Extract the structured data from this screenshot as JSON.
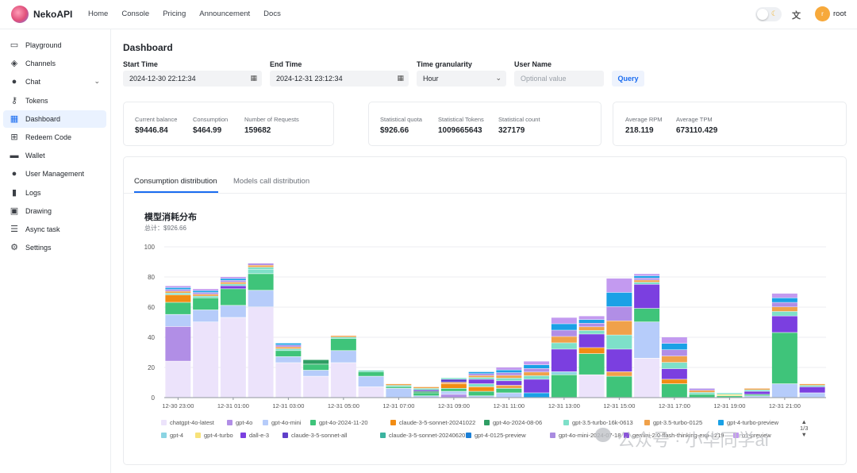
{
  "app": {
    "name": "NekoAPI",
    "user": "root",
    "avatar_initial": "r"
  },
  "nav": [
    "Home",
    "Console",
    "Pricing",
    "Announcement",
    "Docs"
  ],
  "sidebar": [
    {
      "label": "Playground",
      "icon": "chat-bubble-icon",
      "glyph": "▭"
    },
    {
      "label": "Channels",
      "icon": "layers-icon",
      "glyph": "◈"
    },
    {
      "label": "Chat",
      "icon": "message-icon",
      "glyph": "●",
      "expandable": true
    },
    {
      "label": "Tokens",
      "icon": "key-icon",
      "glyph": "⚷"
    },
    {
      "label": "Dashboard",
      "icon": "dashboard-icon",
      "glyph": "▦",
      "active": true
    },
    {
      "label": "Redeem Code",
      "icon": "gift-icon",
      "glyph": "⊞"
    },
    {
      "label": "Wallet",
      "icon": "wallet-icon",
      "glyph": "▬"
    },
    {
      "label": "User Management",
      "icon": "user-icon",
      "glyph": "●"
    },
    {
      "label": "Logs",
      "icon": "bar-chart-icon",
      "glyph": "▮"
    },
    {
      "label": "Drawing",
      "icon": "image-icon",
      "glyph": "▣"
    },
    {
      "label": "Async task",
      "icon": "task-list-icon",
      "glyph": "☰"
    },
    {
      "label": "Settings",
      "icon": "gear-icon",
      "glyph": "⚙"
    }
  ],
  "dashboard": {
    "title": "Dashboard",
    "filters": {
      "start_label": "Start Time",
      "start_value": "2024-12-30 22:12:34",
      "end_label": "End Time",
      "end_value": "2024-12-31 23:12:34",
      "granularity_label": "Time granularity",
      "granularity_value": "Hour",
      "user_label": "User Name",
      "user_placeholder": "Optional value",
      "query_label": "Query"
    },
    "cards": [
      [
        {
          "label": "Current balance",
          "value": "$9446.84"
        },
        {
          "label": "Consumption",
          "value": "$464.99"
        },
        {
          "label": "Number of Requests",
          "value": "159682"
        }
      ],
      [
        {
          "label": "Statistical quota",
          "value": "$926.66"
        },
        {
          "label": "Statistical Tokens",
          "value": "1009665643"
        },
        {
          "label": "Statistical count",
          "value": "327179"
        }
      ],
      [
        {
          "label": "Average RPM",
          "value": "218.119"
        },
        {
          "label": "Average TPM",
          "value": "673110.429"
        }
      ]
    ],
    "tabs": [
      "Consumption distribution",
      "Models call distribution"
    ]
  },
  "legend_pager": "1/3",
  "watermark": "公众号 · 小华同学ai",
  "chart_data": {
    "type": "bar",
    "stacked": true,
    "title": "模型消耗分布",
    "subtitle": "总计：$926.66",
    "ylim": [
      0,
      100
    ],
    "yticks": [
      0,
      20,
      40,
      60,
      80,
      100
    ],
    "grid": true,
    "categories": [
      "12-30 23:00",
      "12-31 00:00",
      "12-31 01:00",
      "12-31 02:00",
      "12-31 03:00",
      "12-31 04:00",
      "12-31 05:00",
      "12-31 06:00",
      "12-31 07:00",
      "12-31 08:00",
      "12-31 09:00",
      "12-31 10:00",
      "12-31 11:00",
      "12-31 12:00",
      "12-31 13:00",
      "12-31 14:00",
      "12-31 15:00",
      "12-31 16:00",
      "12-31 17:00",
      "12-31 18:00",
      "12-31 19:00",
      "12-31 20:00",
      "12-31 21:00",
      "12-31 22:00"
    ],
    "tick_labels_shown": [
      "12-30 23:00",
      "12-31 01:00",
      "12-31 03:00",
      "12-31 05:00",
      "12-31 07:00",
      "12-31 09:00",
      "12-31 11:00",
      "12-31 13:00",
      "12-31 15:00",
      "12-31 17:00",
      "12-31 19:00",
      "12-31 21:00"
    ],
    "series": [
      {
        "name": "chatgpt-4o-latest",
        "color": "#ece3fb",
        "values": [
          24,
          50,
          53,
          60,
          23,
          14,
          23,
          7,
          0,
          0,
          0,
          0,
          0,
          0,
          0,
          15,
          0,
          26,
          0,
          0,
          0,
          0,
          0,
          0
        ]
      },
      {
        "name": "gpt-4o",
        "color": "#b18ee6",
        "values": [
          23,
          0,
          0,
          0,
          0,
          0,
          0,
          0,
          0,
          0,
          2,
          0,
          0,
          0,
          0,
          0,
          0,
          0,
          0,
          0,
          0,
          0,
          0,
          0
        ]
      },
      {
        "name": "gpt-4o-mini",
        "color": "#b6ccfa",
        "values": [
          8,
          8,
          8,
          11,
          4,
          4,
          8,
          7,
          6,
          1,
          2,
          1,
          3,
          0,
          0,
          0,
          0,
          24,
          0,
          0,
          0,
          1,
          9,
          3
        ]
      },
      {
        "name": "gpt-4o-2024-11-20",
        "color": "#3fc47a",
        "values": [
          8,
          8,
          11,
          11,
          4,
          4,
          8,
          3,
          1,
          2,
          2,
          3,
          3,
          0,
          15,
          14,
          14,
          9,
          9,
          2,
          1,
          1,
          34,
          0
        ]
      },
      {
        "name": "claude-3-5-sonnet-20241022",
        "color": "#f28c13",
        "values": [
          5,
          0,
          0,
          0,
          0,
          0,
          0,
          0,
          0,
          0,
          3,
          3,
          0,
          0,
          0,
          4,
          0,
          0,
          3,
          0,
          0,
          0,
          0,
          0
        ]
      },
      {
        "name": "gpt-4o-2024-08-06",
        "color": "#2f9e64",
        "values": [
          0,
          0,
          0,
          0,
          0,
          3,
          0,
          0,
          0,
          1,
          0,
          0,
          0,
          0,
          0,
          0,
          0,
          0,
          0,
          0,
          0,
          0,
          0,
          0
        ]
      },
      {
        "name": "gpt-3.5-turbo-16k-0613",
        "color": "#7ee0c9",
        "values": [
          0,
          0,
          0,
          3,
          0,
          0,
          0,
          0,
          0,
          0,
          0,
          2,
          0,
          0,
          0,
          0,
          0,
          0,
          0,
          0,
          0,
          0,
          0,
          0
        ]
      },
      {
        "name": "gpt-3.5-turbo-0125",
        "color": "#f0a14a",
        "values": [
          0,
          0,
          0,
          0,
          0,
          0,
          0,
          0,
          0,
          0,
          1,
          0,
          2,
          0,
          0,
          0,
          3,
          0,
          0,
          0,
          0,
          0,
          0,
          0
        ]
      },
      {
        "name": "gpt-4-turbo-preview",
        "color": "#1aa1e6",
        "values": [
          0,
          0,
          0,
          0,
          0,
          0,
          0,
          0,
          0,
          0,
          0,
          0,
          0,
          3,
          0,
          0,
          0,
          0,
          0,
          0,
          0,
          0,
          0,
          0
        ]
      },
      {
        "name": "gpt-4",
        "color": "#8bd4e3",
        "values": [
          0,
          0,
          0,
          0,
          0,
          0,
          0,
          0,
          0,
          0,
          0,
          0,
          0,
          0,
          2,
          0,
          0,
          0,
          0,
          0,
          0,
          0,
          0,
          0
        ]
      },
      {
        "name": "gpt-4-turbo",
        "color": "#f7e27a",
        "values": [
          0,
          0,
          0,
          0,
          0,
          0,
          0,
          0,
          0,
          0,
          0,
          0,
          0,
          0,
          0,
          0,
          0,
          0,
          0,
          0,
          1,
          0,
          0,
          0
        ]
      },
      {
        "name": "dall-e-3",
        "color": "#7b3fe0",
        "values": [
          0,
          0,
          2,
          0,
          0,
          0,
          0,
          0,
          0,
          0,
          0,
          3,
          3,
          9,
          15,
          9,
          15,
          16,
          7,
          0,
          0,
          2,
          11,
          4
        ]
      },
      {
        "name": "claude-3-5-sonnet-all",
        "color": "#5f3fc9",
        "values": [
          0,
          0,
          0,
          0,
          0,
          0,
          0,
          0,
          0,
          1,
          2,
          0,
          0,
          0,
          0,
          0,
          0,
          0,
          0,
          0,
          0,
          0,
          0,
          0
        ]
      },
      {
        "name": "claude-3-5-sonnet-20240620",
        "color": "#3bb39f",
        "values": [
          0,
          0,
          0,
          0,
          0,
          0,
          0,
          0,
          0,
          0,
          0,
          0,
          0,
          0,
          0,
          0,
          0,
          0,
          0,
          0,
          0,
          0,
          0,
          0
        ]
      },
      {
        "name": "gpt-4-0125-preview",
        "color": "#1a7fd6",
        "values": [
          0,
          0,
          0,
          0,
          0,
          0,
          0,
          0,
          0,
          0,
          0,
          0,
          0,
          0,
          0,
          0,
          0,
          0,
          0,
          0,
          0,
          0,
          0,
          0
        ]
      },
      {
        "name": "gpt-4o-mini-2024-07-18",
        "color": "#a98be0",
        "values": [
          0,
          0,
          0,
          0,
          0,
          0,
          0,
          0,
          0,
          0,
          0,
          0,
          0,
          0,
          0,
          0,
          0,
          0,
          0,
          0,
          0,
          0,
          0,
          0
        ]
      },
      {
        "name": "gemini-2.0-flash-thinking-exp-1219",
        "color": "#8a55d8",
        "values": [
          0,
          0,
          0,
          0,
          0,
          0,
          0,
          0,
          0,
          0,
          0,
          0,
          0,
          0,
          0,
          0,
          0,
          0,
          0,
          0,
          0,
          0,
          0,
          0
        ]
      },
      {
        "name": "o1-preview",
        "color": "#c39af0",
        "values": [
          0,
          0,
          0,
          0,
          0,
          0,
          0,
          0,
          0,
          0,
          0,
          0,
          0,
          0,
          0,
          0,
          0,
          0,
          0,
          0,
          0,
          0,
          0,
          0
        ]
      }
    ],
    "bar_tops": [
      74,
      72,
      80,
      89,
      36,
      23,
      41,
      18,
      9,
      7,
      13,
      17,
      20,
      24,
      53,
      54,
      79,
      82,
      40,
      6,
      3,
      6,
      69,
      9
    ]
  }
}
